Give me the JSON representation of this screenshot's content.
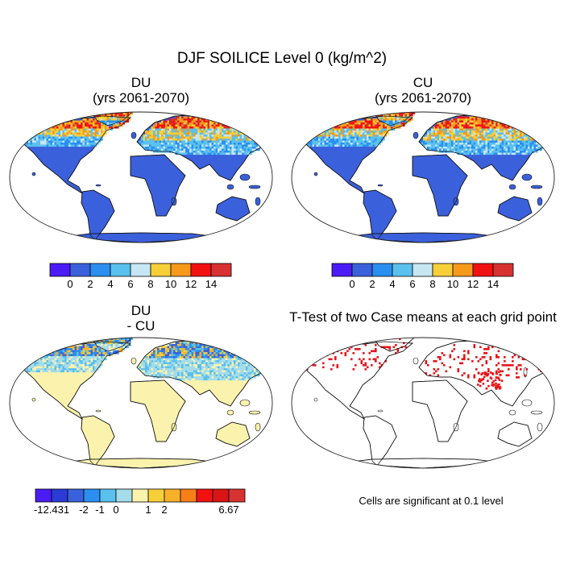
{
  "title": "DJF SOILICE Level 0 (kg/m^2)",
  "panels": [
    {
      "id": "du",
      "title_line1": "DU",
      "title_line2": "(yrs 2061-2070)",
      "fill": "#3b60dc",
      "ne_color": "#f5a018"
    },
    {
      "id": "cu",
      "title_line1": "CU",
      "title_line2": "(yrs 2061-2070)",
      "fill": "#3b60dc",
      "ne_color": "#f5a018"
    },
    {
      "id": "diff",
      "title_line1": "DU",
      "title_line2": "- CU",
      "fill": "#fbf3ad",
      "ne_color": "#a6dcea"
    },
    {
      "id": "ttest",
      "title_line1": "T-Test of two Case means at each grid point",
      "fill": "#ffffff",
      "ne_color": "#e8141b"
    }
  ],
  "colorbar_abs": {
    "colors": [
      "#4b1bf5",
      "#3b60dc",
      "#2a8ff0",
      "#5ac0ee",
      "#c6e6f4",
      "#f7cf39",
      "#f79a1b",
      "#f21111",
      "#d83131"
    ],
    "labels": [
      "0",
      "2",
      "4",
      "6",
      "8",
      "10",
      "12",
      "14"
    ]
  },
  "colorbar_diff": {
    "colors": [
      "#4b1bf5",
      "#2a3bd8",
      "#3b60dc",
      "#2a8ff0",
      "#5ac0ee",
      "#a6dcea",
      "#fbf3ad",
      "#f7cf39",
      "#f7b028",
      "#f77f17",
      "#f21111",
      "#d91515",
      "#d83131"
    ],
    "labels": [
      "-12.431",
      "-2",
      "-1",
      "0",
      "1",
      "2",
      "6.67"
    ]
  },
  "significance_note": "Cells are significant at 0.1 level"
}
